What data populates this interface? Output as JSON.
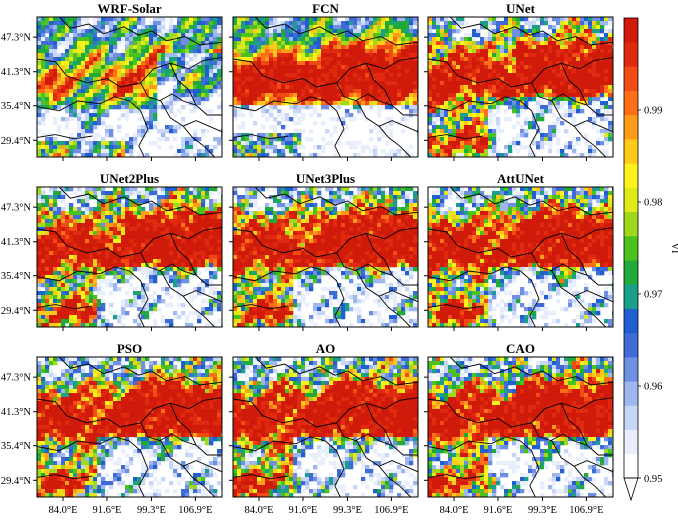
{
  "chart_data": {
    "type": "heatmap",
    "grid": {
      "rows": 3,
      "cols": 3
    },
    "panels": [
      {
        "title": "WRF-Solar",
        "pattern": "sparse"
      },
      {
        "title": "FCN",
        "pattern": "central"
      },
      {
        "title": "UNet",
        "pattern": "full"
      },
      {
        "title": "UNet2Plus",
        "pattern": "full"
      },
      {
        "title": "UNet3Plus",
        "pattern": "full"
      },
      {
        "title": "AttUNet",
        "pattern": "full"
      },
      {
        "title": "PSO",
        "pattern": "full"
      },
      {
        "title": "AO",
        "pattern": "full"
      },
      {
        "title": "CAO",
        "pattern": "full"
      }
    ],
    "y_ticks": [
      {
        "value": 47.3,
        "label": "47.3°N"
      },
      {
        "value": 41.3,
        "label": "41.3°N"
      },
      {
        "value": 35.4,
        "label": "35.4°N"
      },
      {
        "value": 29.4,
        "label": "29.4°N"
      }
    ],
    "x_ticks": [
      {
        "value": 84.0,
        "label": "84.0°E"
      },
      {
        "value": 91.6,
        "label": "91.6°E"
      },
      {
        "value": 99.3,
        "label": "99.3°E"
      },
      {
        "value": 106.9,
        "label": "106.9°E"
      }
    ],
    "xlim": [
      79.5,
      111.5
    ],
    "ylim": [
      26.5,
      50.8
    ],
    "colorbar": {
      "label": "VI",
      "min": 0.95,
      "max": 1.0,
      "ticks": [
        {
          "value": 0.95,
          "label": "0.95"
        },
        {
          "value": 0.96,
          "label": "0.96"
        },
        {
          "value": 0.97,
          "label": "0.97"
        },
        {
          "value": 0.98,
          "label": "0.98"
        },
        {
          "value": 0.99,
          "label": "0.99"
        }
      ],
      "colors": [
        "#ffffff",
        "#e8eefc",
        "#c8d6f7",
        "#9fb7ef",
        "#6f8fe3",
        "#3e6bd6",
        "#1f5fd0",
        "#1b9e8a",
        "#1faa3a",
        "#4cc21e",
        "#9fd81c",
        "#e0ea1a",
        "#fff21a",
        "#ffc91a",
        "#ff9c1a",
        "#ff6f1a",
        "#f24a14",
        "#e02a0f",
        "#d01a0a"
      ]
    }
  }
}
